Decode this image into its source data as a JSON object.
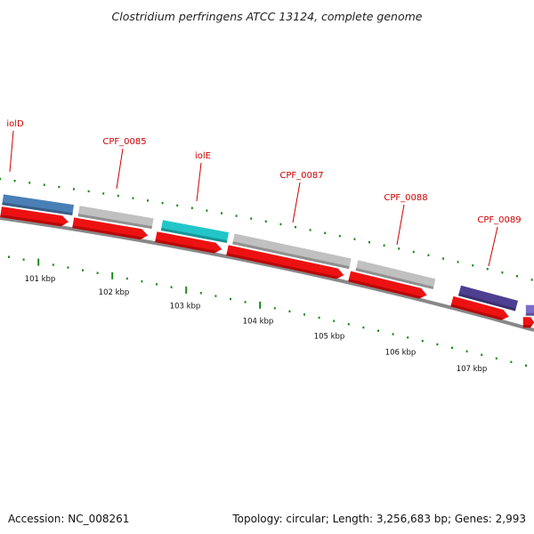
{
  "title": "Clostridium perfringens ATCC 13124, complete genome",
  "footer": {
    "accession": "Accession: NC_008261",
    "summary": "Topology: circular; Length: 3,256,683 bp; Genes: 2,993"
  },
  "colors": {
    "backbone": "#888888",
    "tick": "#1a8a1a",
    "label": "#cc0000",
    "arrow": "#ee1111"
  },
  "genes": [
    {
      "label": "iolD",
      "color": "#4a7fb5"
    },
    {
      "label": "CPF_0085",
      "color": "#c0c0c0"
    },
    {
      "label": "iolE",
      "color": "#22c6c9"
    },
    {
      "label": "CPF_0087",
      "color": "#c0c0c0"
    },
    {
      "label": "CPF_0088",
      "color": "#c0c0c0"
    },
    {
      "label": "CPF_0089",
      "color": "#4e3f92"
    },
    {
      "label": "",
      "color": "#7b6cc8"
    }
  ],
  "scale": {
    "unit": "kbp",
    "labels": [
      "101 kbp",
      "102 kbp",
      "103 kbp",
      "104 kbp",
      "105 kbp",
      "106 kbp",
      "107 kbp"
    ]
  }
}
